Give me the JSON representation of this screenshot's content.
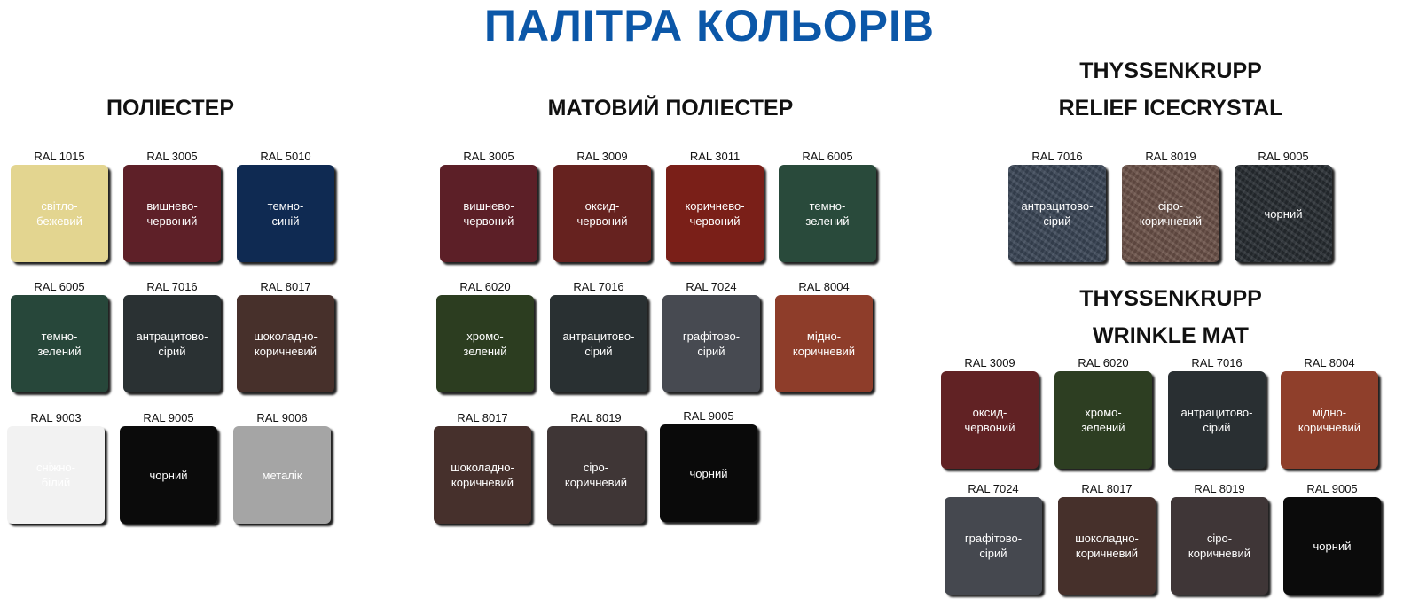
{
  "title": "ПАЛІТРА КОЛЬОРІВ",
  "sections": [
    {
      "heading": [
        "ПОЛІЕСТЕР"
      ],
      "textured": false,
      "swatches": [
        {
          "code": "RAL 1015",
          "name": "світло-\nбежевий",
          "color": "#e3d590"
        },
        {
          "code": "RAL 3005",
          "name": "вишнево-\nчервоний",
          "color": "#5e2028"
        },
        {
          "code": "RAL 5010",
          "name": "темно-\nсиній",
          "color": "#0f2a52"
        },
        {
          "code": "RAL 6005",
          "name": "темно-\nзелений",
          "color": "#27473a"
        },
        {
          "code": "RAL 7016",
          "name": "антрацитово-\nсірий",
          "color": "#2a3133"
        },
        {
          "code": "RAL 8017",
          "name": "шоколадно-\nкоричневий",
          "color": "#47302b"
        },
        {
          "code": "RAL 9003",
          "name": "сніжно-\nбілий",
          "color": "#f2f2f2",
          "text": "#fff"
        },
        {
          "code": "RAL 9005",
          "name": "чорний",
          "color": "#0b0b0b"
        },
        {
          "code": "RAL 9006",
          "name": "металік",
          "color": "#a5a5a5"
        }
      ]
    },
    {
      "heading": [
        "МАТОВИЙ ПОЛІЕСТЕР"
      ],
      "textured": false,
      "swatches": [
        {
          "code": "RAL 3005",
          "name": "вишнево-\nчервоний",
          "color": "#5c1f27"
        },
        {
          "code": "RAL 3009",
          "name": "оксид-\nчервоний",
          "color": "#66221f"
        },
        {
          "code": "RAL 3011",
          "name": "коричнево-\nчервоний",
          "color": "#7a1f18"
        },
        {
          "code": "RAL 6005",
          "name": "темно-\nзелений",
          "color": "#294a3b"
        },
        {
          "code": "RAL 6020",
          "name": "хромо-\nзелений",
          "color": "#2c3d20"
        },
        {
          "code": "RAL 7016",
          "name": "антрацитово-\nсірий",
          "color": "#293032"
        },
        {
          "code": "RAL 7024",
          "name": "графітово-\nсірий",
          "color": "#474a51"
        },
        {
          "code": "RAL 8004",
          "name": "мідно-\nкоричневий",
          "color": "#8e3d2a"
        },
        {
          "code": "RAL 8017",
          "name": "шоколадно-\nкоричневий",
          "color": "#46302c"
        },
        {
          "code": "RAL 8019",
          "name": "сіро-\nкоричневий",
          "color": "#3f3636"
        },
        {
          "code": "RAL 9005",
          "name": "чорний",
          "color": "#0a0a0a"
        }
      ]
    },
    {
      "heading": [
        "THYSSENKRUPP",
        "RELIEF ICECRYSTAL"
      ],
      "textured": true,
      "swatches": [
        {
          "code": "RAL 7016",
          "name": "антрацитово-\nсірий",
          "color": "#3a4656"
        },
        {
          "code": "RAL 8019",
          "name": "сіро-\nкоричневий",
          "color": "#6b5148"
        },
        {
          "code": "RAL 9005",
          "name": "чорний",
          "color": "#272c31"
        }
      ]
    },
    {
      "heading": [
        "THYSSENKRUPP",
        "WRINKLE MAT"
      ],
      "textured": false,
      "swatches": [
        {
          "code": "RAL 3009",
          "name": "оксид-\nчервоний",
          "color": "#612224"
        },
        {
          "code": "RAL 6020",
          "name": "хромо-\nзелений",
          "color": "#2d3e22"
        },
        {
          "code": "RAL 7016",
          "name": "антрацитово-\nсірий",
          "color": "#292f32"
        },
        {
          "code": "RAL 8004",
          "name": "мідно-\nкоричневий",
          "color": "#8f3f2b"
        },
        {
          "code": "RAL 7024",
          "name": "графітово-\nсірий",
          "color": "#45484f"
        },
        {
          "code": "RAL 8017",
          "name": "шоколадно-\nкоричневий",
          "color": "#46302b"
        },
        {
          "code": "RAL 8019",
          "name": "сіро-\nкоричневий",
          "color": "#3f3637"
        },
        {
          "code": "RAL 9005",
          "name": "чорний",
          "color": "#0b0b0b"
        }
      ]
    }
  ]
}
